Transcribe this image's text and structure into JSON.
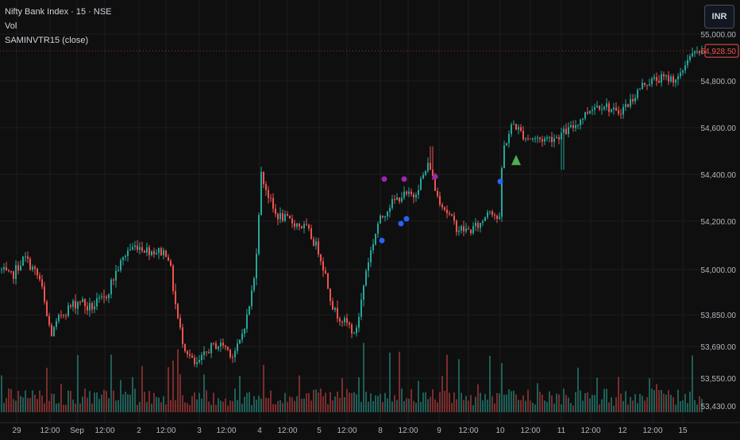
{
  "legend": {
    "symbol_line": "Nifty Bank Index · 15 · NSE",
    "volume_label": "Vol",
    "indicator_label": "SAMINVTR15 (close)"
  },
  "currency_button": "INR",
  "colors": {
    "background": "#0f0f0f",
    "grid": "#1e1e1e",
    "up": "#26a69a",
    "down": "#ef5350",
    "vol_up": "#1f5f57",
    "vol_down": "#7a2d2d",
    "axis_text": "#b2b5be",
    "price_badge": "#ef5350",
    "signal_purple": "#9c27b0",
    "signal_blue": "#2962ff",
    "signal_green": "#4caf50"
  },
  "chart_data": {
    "type": "candlestick",
    "symbol": "Nifty Bank Index",
    "interval": "15",
    "exchange": "NSE",
    "y_ticks": [
      55000,
      54800,
      54600,
      54400,
      54200,
      54000,
      53850,
      53690,
      53550,
      53430
    ],
    "y_tick_labels": [
      "55,000.00",
      "54,800.00",
      "54,600.00",
      "54,400.00",
      "54,200.00",
      "54,000.00",
      "53,850.00",
      "53,690.00",
      "53,550.00",
      "53,430.00"
    ],
    "x_tick_labels": [
      "29",
      "12:00",
      "Sep",
      "12:00",
      "2",
      "12:00",
      "3",
      "12:00",
      "4",
      "12:00",
      "5",
      "12:00",
      "8",
      "12:00",
      "9",
      "12:00",
      "10",
      "12:00",
      "11",
      "12:00",
      "12",
      "12:00",
      "15"
    ],
    "last_price": 54928.5,
    "last_price_label": "54,928.50",
    "anchors": [
      [
        0,
        54000
      ],
      [
        12,
        53970
      ],
      [
        30,
        54050
      ],
      [
        50,
        53960
      ],
      [
        64,
        53750
      ],
      [
        75,
        53850
      ],
      [
        100,
        53900
      ],
      [
        110,
        53870
      ],
      [
        130,
        53900
      ],
      [
        160,
        54080
      ],
      [
        172,
        54100
      ],
      [
        185,
        54080
      ],
      [
        210,
        54070
      ],
      [
        230,
        53700
      ],
      [
        245,
        53600
      ],
      [
        265,
        53690
      ],
      [
        280,
        53700
      ],
      [
        292,
        53650
      ],
      [
        300,
        53700
      ],
      [
        320,
        53980
      ],
      [
        328,
        54400
      ],
      [
        345,
        54230
      ],
      [
        365,
        54200
      ],
      [
        385,
        54170
      ],
      [
        400,
        54080
      ],
      [
        420,
        53860
      ],
      [
        440,
        53790
      ],
      [
        445,
        53740
      ],
      [
        460,
        54000
      ],
      [
        475,
        54190
      ],
      [
        490,
        54270
      ],
      [
        505,
        54310
      ],
      [
        520,
        54310
      ],
      [
        540,
        54450
      ],
      [
        548,
        54320
      ],
      [
        560,
        54250
      ],
      [
        575,
        54170
      ],
      [
        590,
        54160
      ],
      [
        605,
        54190
      ],
      [
        615,
        54260
      ],
      [
        628,
        54200
      ],
      [
        632,
        54500
      ],
      [
        645,
        54620
      ],
      [
        660,
        54560
      ],
      [
        680,
        54550
      ],
      [
        700,
        54560
      ],
      [
        720,
        54600
      ],
      [
        745,
        54690
      ],
      [
        760,
        54700
      ],
      [
        775,
        54660
      ],
      [
        790,
        54700
      ],
      [
        810,
        54790
      ],
      [
        830,
        54810
      ],
      [
        855,
        54810
      ],
      [
        865,
        54900
      ],
      [
        885,
        54930
      ]
    ],
    "signals": [
      {
        "shape": "circle",
        "color": "purple",
        "x": 484,
        "y": 54380
      },
      {
        "shape": "circle",
        "color": "purple",
        "x": 509,
        "y": 54380
      },
      {
        "shape": "circle",
        "color": "purple",
        "x": 548,
        "y": 54390
      },
      {
        "shape": "circle",
        "color": "blue",
        "x": 481,
        "y": 54120
      },
      {
        "shape": "circle",
        "color": "blue",
        "x": 505,
        "y": 54190
      },
      {
        "shape": "circle",
        "color": "blue",
        "x": 512,
        "y": 54210
      },
      {
        "shape": "circle",
        "color": "blue",
        "x": 630,
        "y": 54370
      },
      {
        "shape": "triangle-up",
        "color": "green",
        "x": 650,
        "y": 54460
      }
    ]
  }
}
